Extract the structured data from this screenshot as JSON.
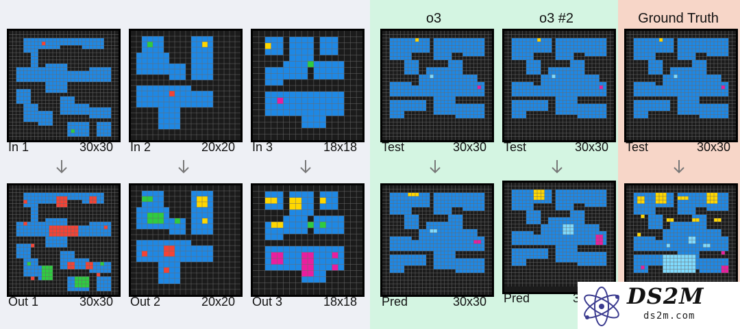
{
  "columns": {
    "o3": "o3",
    "o3_2": "o3 #2",
    "gt": "Ground Truth"
  },
  "examples": [
    {
      "in_label": "In 1",
      "in_size": "30x30",
      "out_label": "Out 1",
      "out_size": "30x30"
    },
    {
      "in_label": "In 2",
      "in_size": "20x20",
      "out_label": "Out 2",
      "out_size": "20x20"
    },
    {
      "in_label": "In 3",
      "in_size": "18x18",
      "out_label": "Out 3",
      "out_size": "18x18"
    }
  ],
  "tests": [
    {
      "in_label": "Test",
      "in_size": "30x30",
      "out_label": "Pred",
      "out_size": "30x30"
    },
    {
      "in_label": "Test",
      "in_size": "30x30",
      "out_label": "Pred",
      "out_size": "3"
    },
    {
      "in_label": "Test",
      "in_size": "30x30"
    }
  ],
  "colors": {
    "panel_left": "#eef0f5",
    "panel_green": "#d4f5e2",
    "panel_red": "#f7d6c8",
    "cell_bg": "#1b1b1b",
    "grid_line": "#6a6a6a",
    "blue": "#1e88e5",
    "red": "#f44336",
    "green": "#2ecc40",
    "yellow": "#ffd700",
    "magenta": "#e91e9f",
    "cyan": "#7fdbff",
    "arrow": "#777777"
  },
  "logo": {
    "name": "DS2M",
    "url": "ds2m.com"
  }
}
